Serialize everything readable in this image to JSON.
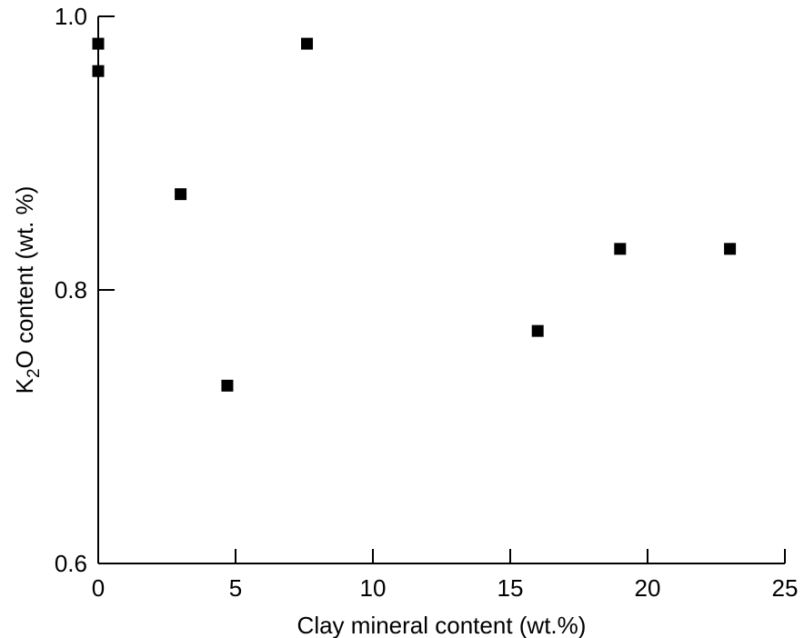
{
  "chart_data": {
    "type": "scatter",
    "xlabel": "Clay mineral content (wt.%)",
    "ylabel": {
      "pre": "K",
      "sub": "2",
      "post": "O content (wt. %)"
    },
    "xlim": [
      0,
      25
    ],
    "ylim": [
      0.6,
      1.0
    ],
    "xticks": [
      0,
      5,
      10,
      15,
      20,
      25
    ],
    "xtick_labels": [
      "0",
      "5",
      "10",
      "15",
      "20",
      "25"
    ],
    "yticks": [
      0.6,
      0.8,
      1.0
    ],
    "ytick_labels": [
      "0.6",
      "0.8",
      "1.0"
    ],
    "grid": false,
    "marker": "square",
    "marker_color": "#000000",
    "points": [
      {
        "x": 0,
        "y": 0.98
      },
      {
        "x": 0,
        "y": 0.96
      },
      {
        "x": 3,
        "y": 0.87
      },
      {
        "x": 4.7,
        "y": 0.73
      },
      {
        "x": 7.6,
        "y": 0.98
      },
      {
        "x": 16,
        "y": 0.77
      },
      {
        "x": 19,
        "y": 0.83
      },
      {
        "x": 23,
        "y": 0.83
      }
    ]
  }
}
